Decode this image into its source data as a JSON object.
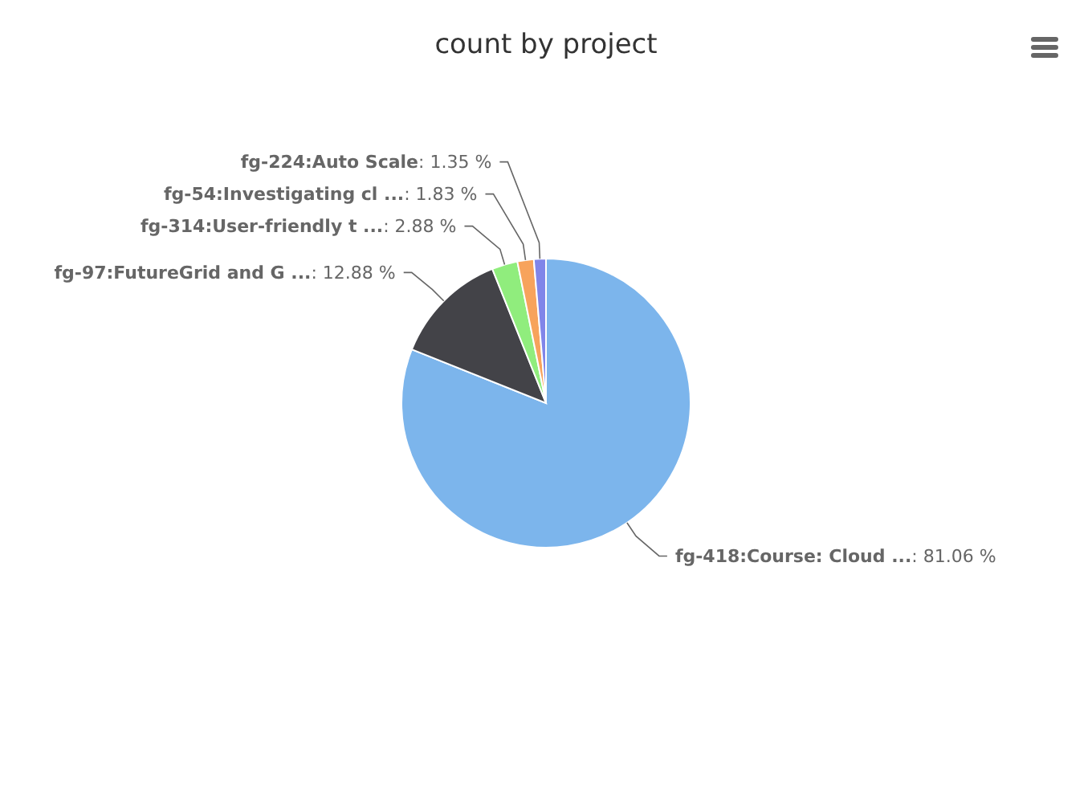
{
  "chart_data": {
    "type": "pie",
    "title": "count by project",
    "categories": [
      "fg-418:Course: Cloud ...",
      "fg-97:FutureGrid and G ...",
      "fg-314:User-friendly t ...",
      "fg-54:Investigating cl ...",
      "fg-224:Auto Scale"
    ],
    "values": [
      81.06,
      12.88,
      2.88,
      1.83,
      1.35
    ],
    "colors": [
      "#7cb5ec",
      "#434348",
      "#90ed7d",
      "#f7a35c",
      "#8085e9"
    ],
    "value_labels": [
      ": 81.06 %",
      ": 12.88 %",
      ": 2.88 %",
      ": 1.83 %",
      ": 1.35 %"
    ]
  }
}
